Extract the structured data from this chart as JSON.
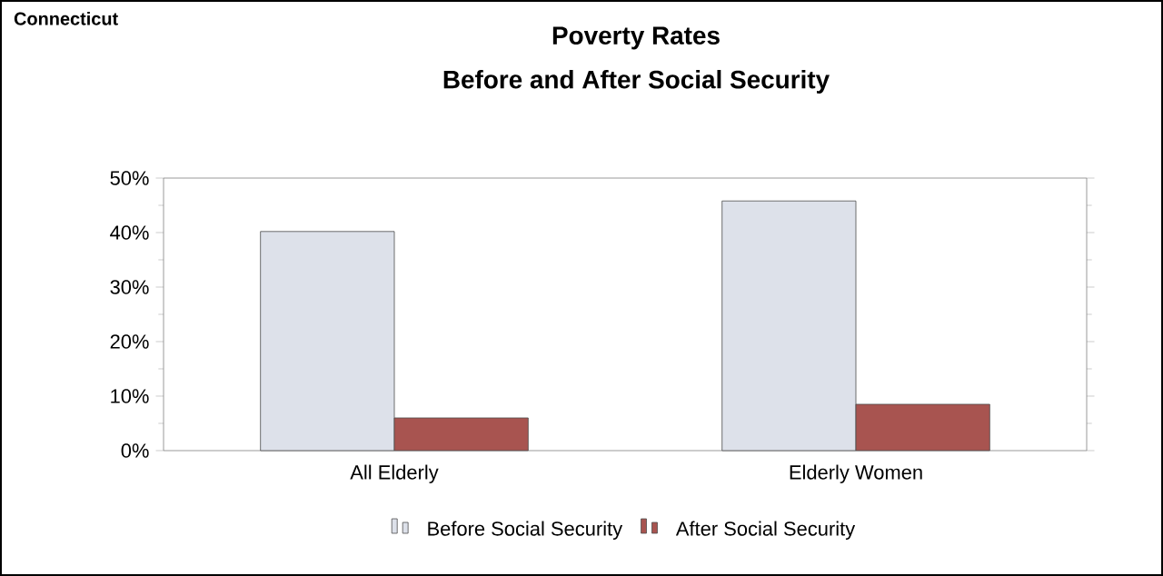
{
  "chart_data": {
    "type": "bar",
    "title": "Poverty Rates",
    "subtitle": "Before and After Social Security",
    "annotations": [
      "Connecticut"
    ],
    "categories": [
      "All Elderly",
      "Elderly Women"
    ],
    "series": [
      {
        "name": "Before Social Security",
        "color": "#dde1ea",
        "values": [
          40.2,
          45.8
        ]
      },
      {
        "name": "After Social Security",
        "color": "#a85450",
        "values": [
          6.0,
          8.5
        ]
      }
    ],
    "ylim": [
      0,
      50
    ],
    "yticks": [
      {
        "value": 0,
        "label": "0%"
      },
      {
        "value": 10,
        "label": "10%"
      },
      {
        "value": 20,
        "label": "20%"
      },
      {
        "value": 30,
        "label": "30%"
      },
      {
        "value": 40,
        "label": "40%"
      },
      {
        "value": 50,
        "label": "50%"
      }
    ],
    "grid": false,
    "legend": "bottom"
  }
}
